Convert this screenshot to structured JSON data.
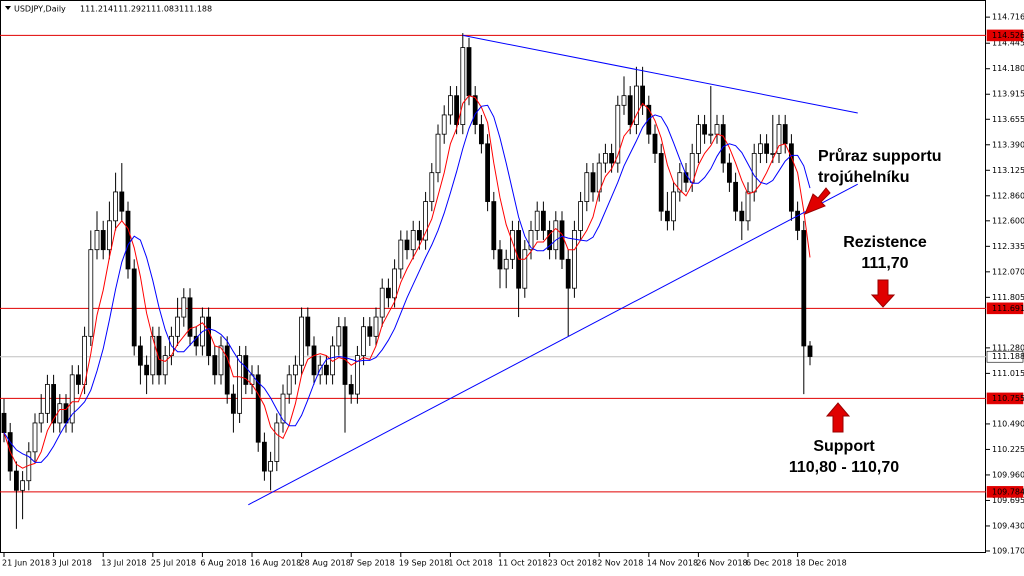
{
  "chart_data": {
    "type": "candlestick",
    "symbol": "USDJPY,Daily",
    "quote": [
      111.214,
      111.292,
      111.083,
      111.188
    ],
    "categories": [
      "21 Jun 2018",
      null,
      null,
      null,
      null,
      null,
      null,
      null,
      "3 Jul 2018",
      null,
      null,
      null,
      null,
      null,
      null,
      null,
      "13 Jul 2018",
      null,
      null,
      null,
      null,
      null,
      null,
      null,
      "25 Jul 2018",
      null,
      null,
      null,
      null,
      null,
      null,
      null,
      "6 Aug 2018",
      null,
      null,
      null,
      null,
      null,
      null,
      null,
      "16 Aug 2018",
      null,
      null,
      null,
      null,
      null,
      null,
      null,
      "28 Aug 2018",
      null,
      null,
      null,
      null,
      null,
      null,
      null,
      "7 Sep 2018",
      null,
      null,
      null,
      null,
      null,
      null,
      null,
      "19 Sep 2018",
      null,
      null,
      null,
      null,
      null,
      null,
      null,
      "1 Oct 2018",
      null,
      null,
      null,
      null,
      null,
      null,
      null,
      "11 Oct 2018",
      null,
      null,
      null,
      null,
      null,
      null,
      null,
      "23 Oct 2018",
      null,
      null,
      null,
      null,
      null,
      null,
      null,
      "2 Nov 2018",
      null,
      null,
      null,
      null,
      null,
      null,
      null,
      "14 Nov 2018",
      null,
      null,
      null,
      null,
      null,
      null,
      null,
      "26 Nov 2018",
      null,
      null,
      null,
      null,
      null,
      null,
      null,
      "6 Dec 2018",
      null,
      null,
      null,
      null,
      null,
      null,
      null,
      "18 Dec 2018",
      null,
      null
    ],
    "ohlc": [
      [
        110.6,
        110.75,
        110.3,
        110.4
      ],
      [
        110.4,
        110.5,
        109.9,
        110.0
      ],
      [
        110.0,
        110.1,
        109.4,
        109.8
      ],
      [
        109.8,
        110.0,
        109.5,
        109.9
      ],
      [
        109.9,
        110.3,
        109.8,
        110.2
      ],
      [
        110.2,
        110.6,
        110.1,
        110.5
      ],
      [
        110.5,
        110.8,
        110.4,
        110.6
      ],
      [
        110.6,
        111.0,
        110.5,
        110.9
      ],
      [
        110.9,
        111.0,
        110.4,
        110.5
      ],
      [
        110.5,
        110.8,
        110.4,
        110.7
      ],
      [
        110.7,
        110.8,
        110.4,
        110.5
      ],
      [
        110.5,
        111.1,
        110.4,
        111.0
      ],
      [
        111.0,
        111.1,
        110.8,
        110.9
      ],
      [
        110.9,
        111.5,
        110.8,
        111.4
      ],
      [
        111.4,
        112.5,
        111.3,
        112.3
      ],
      [
        112.3,
        112.7,
        112.2,
        112.5
      ],
      [
        112.5,
        112.6,
        112.2,
        112.3
      ],
      [
        112.3,
        112.8,
        112.2,
        112.6
      ],
      [
        112.6,
        113.1,
        112.5,
        112.9
      ],
      [
        112.9,
        113.2,
        112.6,
        112.7
      ],
      [
        112.7,
        112.8,
        112.0,
        112.1
      ],
      [
        112.1,
        112.2,
        111.2,
        111.3
      ],
      [
        111.3,
        111.4,
        110.9,
        111.1
      ],
      [
        111.1,
        111.2,
        110.8,
        111.0
      ],
      [
        111.0,
        111.5,
        110.9,
        111.4
      ],
      [
        111.4,
        111.5,
        110.9,
        111.0
      ],
      [
        111.0,
        111.3,
        110.9,
        111.2
      ],
      [
        111.2,
        111.5,
        111.1,
        111.4
      ],
      [
        111.4,
        111.8,
        111.3,
        111.6
      ],
      [
        111.6,
        111.9,
        111.5,
        111.8
      ],
      [
        111.8,
        111.9,
        111.3,
        111.4
      ],
      [
        111.4,
        111.5,
        111.2,
        111.3
      ],
      [
        111.3,
        111.7,
        111.2,
        111.6
      ],
      [
        111.6,
        111.7,
        111.1,
        111.2
      ],
      [
        111.2,
        111.3,
        110.9,
        111.0
      ],
      [
        111.0,
        111.4,
        110.9,
        111.3
      ],
      [
        111.3,
        111.4,
        110.7,
        110.8
      ],
      [
        110.8,
        110.9,
        110.4,
        110.6
      ],
      [
        110.6,
        111.3,
        110.5,
        111.2
      ],
      [
        111.2,
        111.3,
        110.8,
        110.9
      ],
      [
        110.9,
        111.1,
        110.8,
        111.0
      ],
      [
        111.0,
        111.1,
        110.2,
        110.3
      ],
      [
        110.3,
        110.4,
        109.9,
        110.0
      ],
      [
        110.0,
        110.2,
        109.8,
        110.1
      ],
      [
        110.1,
        110.6,
        110.0,
        110.5
      ],
      [
        110.5,
        110.9,
        110.4,
        110.8
      ],
      [
        110.8,
        111.1,
        110.7,
        111.0
      ],
      [
        111.0,
        111.2,
        110.9,
        111.1
      ],
      [
        111.1,
        111.7,
        111.0,
        111.6
      ],
      [
        111.6,
        111.7,
        111.2,
        111.3
      ],
      [
        111.3,
        111.4,
        110.9,
        111.0
      ],
      [
        111.0,
        111.2,
        110.9,
        111.1
      ],
      [
        111.1,
        111.2,
        110.9,
        111.0
      ],
      [
        111.0,
        111.4,
        110.9,
        111.3
      ],
      [
        111.3,
        111.6,
        111.2,
        111.5
      ],
      [
        111.5,
        111.6,
        110.4,
        110.9
      ],
      [
        110.9,
        111.0,
        110.7,
        110.8
      ],
      [
        110.8,
        111.3,
        110.7,
        111.2
      ],
      [
        111.2,
        111.6,
        111.1,
        111.5
      ],
      [
        111.5,
        111.6,
        111.3,
        111.4
      ],
      [
        111.4,
        111.7,
        111.3,
        111.6
      ],
      [
        111.6,
        112.0,
        111.5,
        111.9
      ],
      [
        111.9,
        112.0,
        111.7,
        111.8
      ],
      [
        111.8,
        112.2,
        111.7,
        112.1
      ],
      [
        112.1,
        112.5,
        112.0,
        112.4
      ],
      [
        112.4,
        112.5,
        112.2,
        112.3
      ],
      [
        112.3,
        112.6,
        112.2,
        112.5
      ],
      [
        112.5,
        112.6,
        112.3,
        112.4
      ],
      [
        112.4,
        112.9,
        112.3,
        112.8
      ],
      [
        112.8,
        113.2,
        112.7,
        113.1
      ],
      [
        113.1,
        113.6,
        113.0,
        113.5
      ],
      [
        113.5,
        113.8,
        113.4,
        113.7
      ],
      [
        113.7,
        114.0,
        113.6,
        113.9
      ],
      [
        113.9,
        114.0,
        113.5,
        113.6
      ],
      [
        113.6,
        114.55,
        113.5,
        114.4
      ],
      [
        114.4,
        114.5,
        113.8,
        113.9
      ],
      [
        113.9,
        114.0,
        113.5,
        113.6
      ],
      [
        113.6,
        113.7,
        113.3,
        113.4
      ],
      [
        113.4,
        113.5,
        112.7,
        112.8
      ],
      [
        112.8,
        112.9,
        112.2,
        112.3
      ],
      [
        112.3,
        112.4,
        111.9,
        112.1
      ],
      [
        112.1,
        112.3,
        111.9,
        112.2
      ],
      [
        112.2,
        112.6,
        112.1,
        112.5
      ],
      [
        112.5,
        112.6,
        111.6,
        111.9
      ],
      [
        111.9,
        112.4,
        111.8,
        112.3
      ],
      [
        112.3,
        112.6,
        112.2,
        112.5
      ],
      [
        112.5,
        112.8,
        112.4,
        112.7
      ],
      [
        112.7,
        112.8,
        112.4,
        112.5
      ],
      [
        112.5,
        112.6,
        112.2,
        112.3
      ],
      [
        112.3,
        112.7,
        112.2,
        112.6
      ],
      [
        112.6,
        112.7,
        112.1,
        112.2
      ],
      [
        112.2,
        112.3,
        111.4,
        111.9
      ],
      [
        111.9,
        112.6,
        111.8,
        112.5
      ],
      [
        112.5,
        112.9,
        112.4,
        112.8
      ],
      [
        112.8,
        113.2,
        112.7,
        113.1
      ],
      [
        113.1,
        113.2,
        112.8,
        112.9
      ],
      [
        112.9,
        113.3,
        112.8,
        113.2
      ],
      [
        113.2,
        113.4,
        113.1,
        113.3
      ],
      [
        113.3,
        113.4,
        113.1,
        113.2
      ],
      [
        113.2,
        113.9,
        113.1,
        113.8
      ],
      [
        113.8,
        114.1,
        113.7,
        113.9
      ],
      [
        113.9,
        114.0,
        113.5,
        113.6
      ],
      [
        113.6,
        114.2,
        113.5,
        114.0
      ],
      [
        114.0,
        114.2,
        113.7,
        113.8
      ],
      [
        113.8,
        113.9,
        113.4,
        113.5
      ],
      [
        113.5,
        113.6,
        113.2,
        113.3
      ],
      [
        113.3,
        113.4,
        112.6,
        112.7
      ],
      [
        112.7,
        112.9,
        112.5,
        112.6
      ],
      [
        112.6,
        113.0,
        112.5,
        112.9
      ],
      [
        112.9,
        113.2,
        112.8,
        113.1
      ],
      [
        113.1,
        113.2,
        112.9,
        113.0
      ],
      [
        113.0,
        113.4,
        112.9,
        113.3
      ],
      [
        113.3,
        113.7,
        113.2,
        113.6
      ],
      [
        113.6,
        113.7,
        113.4,
        113.5
      ],
      [
        113.5,
        114.0,
        113.4,
        113.5
      ],
      [
        113.5,
        113.7,
        113.4,
        113.6
      ],
      [
        113.6,
        113.7,
        113.1,
        113.2
      ],
      [
        113.2,
        113.3,
        112.9,
        113.0
      ],
      [
        113.0,
        113.1,
        112.6,
        112.7
      ],
      [
        112.7,
        112.8,
        112.4,
        112.6
      ],
      [
        112.6,
        113.0,
        112.5,
        112.9
      ],
      [
        112.9,
        113.4,
        112.8,
        113.3
      ],
      [
        113.3,
        113.5,
        113.2,
        113.4
      ],
      [
        113.4,
        113.5,
        113.2,
        113.3
      ],
      [
        113.3,
        113.7,
        113.2,
        113.3
      ],
      [
        113.3,
        113.7,
        113.2,
        113.6
      ],
      [
        113.6,
        113.7,
        113.3,
        113.4
      ],
      [
        113.4,
        113.5,
        112.6,
        112.7
      ],
      [
        112.7,
        112.8,
        112.4,
        112.5
      ],
      [
        112.5,
        112.6,
        110.8,
        111.3
      ],
      [
        111.3,
        111.35,
        111.1,
        111.19
      ]
    ],
    "moving_averages": [
      {
        "color": "#ff0000",
        "values": [
          110.4,
          110.2,
          110.07,
          110.03,
          110.06,
          110.08,
          110.2,
          110.42,
          110.54,
          110.64,
          110.64,
          110.72,
          110.72,
          110.9,
          111.22,
          111.62,
          111.88,
          112.22,
          112.52,
          112.6,
          112.52,
          112.32,
          112.02,
          111.64,
          111.38,
          111.16,
          111.14,
          111.2,
          111.32,
          111.4,
          111.48,
          111.5,
          111.54,
          111.46,
          111.3,
          111.28,
          111.18,
          110.98,
          110.98,
          110.96,
          110.9,
          110.8,
          110.68,
          110.46,
          110.38,
          110.34,
          110.48,
          110.7,
          111.0,
          111.16,
          111.2,
          111.22,
          111.2,
          111.14,
          111.18,
          111.16,
          111.1,
          111.14,
          111.18,
          111.16,
          111.3,
          111.52,
          111.64,
          111.76,
          111.96,
          112.1,
          112.22,
          112.34,
          112.48,
          112.62,
          112.86,
          113.1,
          113.4,
          113.56,
          113.82,
          113.9,
          113.88,
          113.78,
          113.62,
          113.2,
          112.84,
          112.56,
          112.38,
          112.2,
          112.2,
          112.28,
          112.38,
          112.38,
          112.46,
          112.52,
          112.46,
          112.3,
          112.3,
          112.4,
          112.5,
          112.64,
          112.9,
          113.06,
          113.14,
          113.28,
          113.48,
          113.56,
          113.7,
          113.82,
          113.76,
          113.64,
          113.46,
          113.18,
          113.0,
          112.92,
          112.86,
          112.98,
          113.18,
          113.3,
          113.38,
          113.5,
          113.48,
          113.36,
          113.2,
          113.02,
          112.88,
          112.9,
          112.98,
          113.1,
          113.24,
          113.38,
          113.4,
          113.26,
          113.1,
          112.7,
          112.22
        ]
      },
      {
        "color": "#0000ff",
        "values": [
          110.4,
          110.3,
          110.22,
          110.18,
          110.15,
          110.09,
          110.09,
          110.16,
          110.26,
          110.38,
          110.49,
          110.59,
          110.65,
          110.72,
          110.84,
          111.04,
          111.27,
          111.57,
          111.89,
          112.17,
          112.35,
          112.44,
          112.4,
          112.22,
          111.98,
          111.7,
          111.47,
          111.3,
          111.24,
          111.24,
          111.31,
          111.38,
          111.45,
          111.48,
          111.46,
          111.42,
          111.35,
          111.24,
          111.14,
          111.08,
          111.0,
          110.92,
          110.86,
          110.76,
          110.64,
          110.53,
          110.47,
          110.47,
          110.58,
          110.74,
          110.91,
          111.06,
          111.16,
          111.18,
          111.19,
          111.18,
          111.16,
          111.14,
          111.15,
          111.15,
          111.18,
          111.26,
          111.36,
          111.48,
          111.64,
          111.8,
          111.94,
          112.08,
          112.22,
          112.35,
          112.5,
          112.68,
          112.89,
          113.11,
          113.35,
          113.56,
          113.71,
          113.79,
          113.8,
          113.68,
          113.46,
          113.2,
          112.92,
          112.64,
          112.44,
          112.32,
          112.29,
          112.29,
          112.34,
          112.4,
          112.44,
          112.42,
          112.41,
          112.4,
          112.39,
          112.43,
          112.55,
          112.7,
          112.85,
          113.0,
          113.17,
          113.3,
          113.43,
          113.57,
          113.66,
          113.7,
          113.68,
          113.57,
          113.41,
          113.24,
          113.08,
          112.99,
          112.99,
          113.05,
          113.14,
          113.27,
          113.37,
          113.4,
          113.38,
          113.31,
          113.19,
          113.07,
          113.0,
          112.98,
          113.02,
          113.12,
          113.22,
          113.28,
          113.28,
          113.17,
          112.94
        ]
      }
    ],
    "trendlines": [
      {
        "color": "#0000ff",
        "x": [
          74,
          137.7
        ],
        "y": [
          114.526,
          113.72
        ]
      },
      {
        "color": "#0000ff",
        "x": [
          39.4,
          137.7
        ],
        "y": [
          109.65,
          112.98
        ]
      }
    ],
    "levels": [
      {
        "value": 114.526,
        "color": "#e00000"
      },
      {
        "value": 111.691,
        "color": "#e00000"
      },
      {
        "value": 110.755,
        "color": "#e00000"
      },
      {
        "value": 109.784,
        "color": "#e00000"
      }
    ],
    "price_line": {
      "value": 111.188,
      "color": "#c0c0c0"
    },
    "ylim": [
      109.149,
      114.894
    ],
    "yticks": [
      114.716,
      114.445,
      {
        "value": 114.18,
        "label": "114.180"
      },
      113.915,
      113.655,
      {
        "value": 113.39,
        "label": "113.390"
      },
      113.125,
      {
        "value": 112.86,
        "label": "112.860"
      },
      {
        "value": 112.6,
        "label": "112.600"
      },
      112.335,
      {
        "value": 112.07,
        "label": "112.070"
      },
      111.805,
      {
        "value": 111.28,
        "label": "111.280"
      },
      111.015,
      {
        "value": 110.49,
        "label": "110.490"
      },
      110.225,
      {
        "value": 109.96,
        "label": "109.960"
      },
      109.695,
      {
        "value": 109.43,
        "label": "109.430"
      },
      {
        "value": 109.17,
        "label": "109.170"
      }
    ],
    "annotations": [
      {
        "lines": [
          "Průraz supportu",
          "trojúhelníku"
        ]
      },
      {
        "lines": [
          "Rezistence",
          "111,70"
        ]
      },
      {
        "lines": [
          "Support",
          "110,80 - 110,70"
        ]
      }
    ]
  }
}
